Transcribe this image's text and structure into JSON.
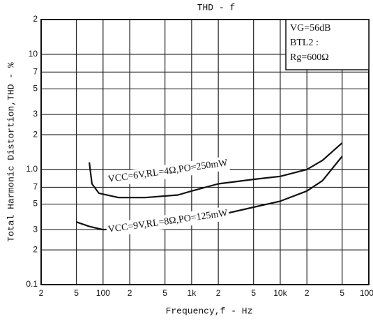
{
  "chart_data": {
    "type": "line",
    "title": "THD - f",
    "xlabel": "Frequency,f - Hz",
    "ylabel": "Total Harmonic Distortion,THD - %",
    "annotations": [
      "VG=56dB",
      "BTL2 :",
      "Rg=600Ω"
    ],
    "x_scale": "log",
    "y_scale": "log",
    "grid": true,
    "xlim": [
      20,
      100000
    ],
    "ylim": [
      0.1,
      20
    ],
    "xticks": [
      {
        "value": 20,
        "label": "2"
      },
      {
        "value": 50,
        "label": "5"
      },
      100,
      {
        "value": 200,
        "label": "2"
      },
      {
        "value": 500,
        "label": "5"
      },
      {
        "value": 1000,
        "label": "1k"
      },
      {
        "value": 2000,
        "label": "2"
      },
      {
        "value": 5000,
        "label": "5"
      },
      {
        "value": 10000,
        "label": "10k"
      },
      {
        "value": 20000,
        "label": "2"
      },
      {
        "value": 50000,
        "label": "5"
      },
      {
        "value": 100000,
        "label": "100k"
      }
    ],
    "yticks": [
      0.1,
      {
        "value": 0.2,
        "label": "2"
      },
      {
        "value": 0.3,
        "label": "3"
      },
      {
        "value": 0.5,
        "label": "5"
      },
      {
        "value": 0.7,
        "label": "7"
      },
      {
        "value": 1,
        "label": "1.0"
      },
      2,
      3,
      5,
      7,
      10,
      {
        "value": 20,
        "label": "2"
      }
    ],
    "series": [
      {
        "name": "VCC=6V,RL=4Ω,PO=250mW",
        "color": "#111111",
        "x": [
          70,
          75,
          90,
          150,
          300,
          700,
          1000,
          2000,
          5000,
          10000,
          20000,
          30000,
          50000
        ],
        "values": [
          1.15,
          0.75,
          0.62,
          0.57,
          0.57,
          0.6,
          0.65,
          0.75,
          0.82,
          0.87,
          1.0,
          1.2,
          1.7
        ]
      },
      {
        "name": "VCC=9V,RL=8Ω,PO=125mW",
        "color": "#111111",
        "x": [
          50,
          70,
          100,
          200,
          500,
          1000,
          2000,
          5000,
          10000,
          20000,
          30000,
          50000
        ],
        "values": [
          0.35,
          0.32,
          0.3,
          0.31,
          0.33,
          0.34,
          0.4,
          0.47,
          0.53,
          0.65,
          0.8,
          1.3
        ]
      }
    ]
  }
}
